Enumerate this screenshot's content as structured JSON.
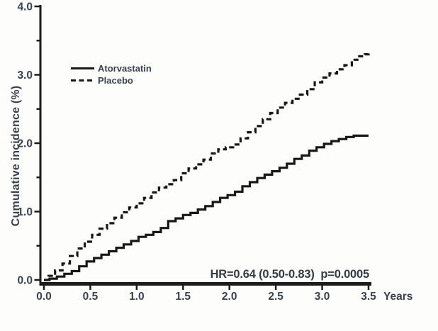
{
  "chart_data": {
    "type": "line",
    "subtype": "kaplan-meier-step",
    "title": "",
    "xlabel": "Years",
    "ylabel": "Cumulative incidence (%)",
    "xlim": [
      0,
      3.5
    ],
    "ylim": [
      0,
      4.0
    ],
    "xtick_labels": [
      "0.0",
      "0.5",
      "1.0",
      "1.5",
      "2.0",
      "2.5",
      "3.0",
      "3.5"
    ],
    "ytick_labels": [
      "0.0",
      "1.0",
      "2.0",
      "3.0",
      "4.0"
    ],
    "y_minor_ticks": [
      0.5,
      1.5,
      2.5,
      3.5
    ],
    "grid": false,
    "legend_position": "upper-left-inside",
    "annotation": "HR=0.64 (0.50-0.83)  p=0.0005",
    "axis_color": "#1c1c1c",
    "curve_color": "#17181a",
    "series": [
      {
        "name": "Atorvastatin",
        "style": "solid",
        "points": [
          [
            0.0,
            0.0
          ],
          [
            0.06,
            0.02
          ],
          [
            0.14,
            0.05
          ],
          [
            0.22,
            0.09
          ],
          [
            0.3,
            0.13
          ],
          [
            0.38,
            0.2
          ],
          [
            0.46,
            0.27
          ],
          [
            0.54,
            0.32
          ],
          [
            0.62,
            0.37
          ],
          [
            0.7,
            0.42
          ],
          [
            0.78,
            0.47
          ],
          [
            0.86,
            0.52
          ],
          [
            0.94,
            0.57
          ],
          [
            1.02,
            0.63
          ],
          [
            1.1,
            0.66
          ],
          [
            1.18,
            0.7
          ],
          [
            1.26,
            0.76
          ],
          [
            1.34,
            0.86
          ],
          [
            1.42,
            0.9
          ],
          [
            1.5,
            0.95
          ],
          [
            1.58,
            0.98
          ],
          [
            1.66,
            1.03
          ],
          [
            1.74,
            1.08
          ],
          [
            1.82,
            1.14
          ],
          [
            1.9,
            1.2
          ],
          [
            1.98,
            1.24
          ],
          [
            2.06,
            1.29
          ],
          [
            2.14,
            1.37
          ],
          [
            2.22,
            1.43
          ],
          [
            2.3,
            1.49
          ],
          [
            2.38,
            1.54
          ],
          [
            2.46,
            1.59
          ],
          [
            2.54,
            1.64
          ],
          [
            2.62,
            1.7
          ],
          [
            2.7,
            1.77
          ],
          [
            2.78,
            1.82
          ],
          [
            2.86,
            1.89
          ],
          [
            2.94,
            1.94
          ],
          [
            3.02,
            1.99
          ],
          [
            3.1,
            2.03
          ],
          [
            3.18,
            2.06
          ],
          [
            3.26,
            2.09
          ],
          [
            3.34,
            2.11
          ],
          [
            3.5,
            2.11
          ]
        ]
      },
      {
        "name": "Placebo",
        "style": "dashed",
        "points": [
          [
            0.0,
            0.0
          ],
          [
            0.05,
            0.06
          ],
          [
            0.12,
            0.14
          ],
          [
            0.2,
            0.24
          ],
          [
            0.28,
            0.35
          ],
          [
            0.36,
            0.46
          ],
          [
            0.44,
            0.56
          ],
          [
            0.52,
            0.66
          ],
          [
            0.6,
            0.75
          ],
          [
            0.68,
            0.83
          ],
          [
            0.76,
            0.91
          ],
          [
            0.84,
            0.99
          ],
          [
            0.92,
            1.06
          ],
          [
            1.0,
            1.12
          ],
          [
            1.08,
            1.2
          ],
          [
            1.16,
            1.28
          ],
          [
            1.24,
            1.35
          ],
          [
            1.32,
            1.4
          ],
          [
            1.4,
            1.46
          ],
          [
            1.48,
            1.56
          ],
          [
            1.56,
            1.63
          ],
          [
            1.64,
            1.69
          ],
          [
            1.72,
            1.76
          ],
          [
            1.8,
            1.85
          ],
          [
            1.88,
            1.91
          ],
          [
            1.96,
            1.94
          ],
          [
            2.04,
            1.98
          ],
          [
            2.12,
            2.07
          ],
          [
            2.2,
            2.16
          ],
          [
            2.28,
            2.25
          ],
          [
            2.36,
            2.35
          ],
          [
            2.44,
            2.44
          ],
          [
            2.52,
            2.52
          ],
          [
            2.6,
            2.59
          ],
          [
            2.68,
            2.65
          ],
          [
            2.76,
            2.71
          ],
          [
            2.84,
            2.79
          ],
          [
            2.92,
            2.89
          ],
          [
            3.0,
            2.96
          ],
          [
            3.08,
            3.02
          ],
          [
            3.16,
            3.08
          ],
          [
            3.24,
            3.14
          ],
          [
            3.32,
            3.22
          ],
          [
            3.4,
            3.27
          ],
          [
            3.46,
            3.3
          ],
          [
            3.5,
            3.33
          ]
        ]
      }
    ]
  }
}
